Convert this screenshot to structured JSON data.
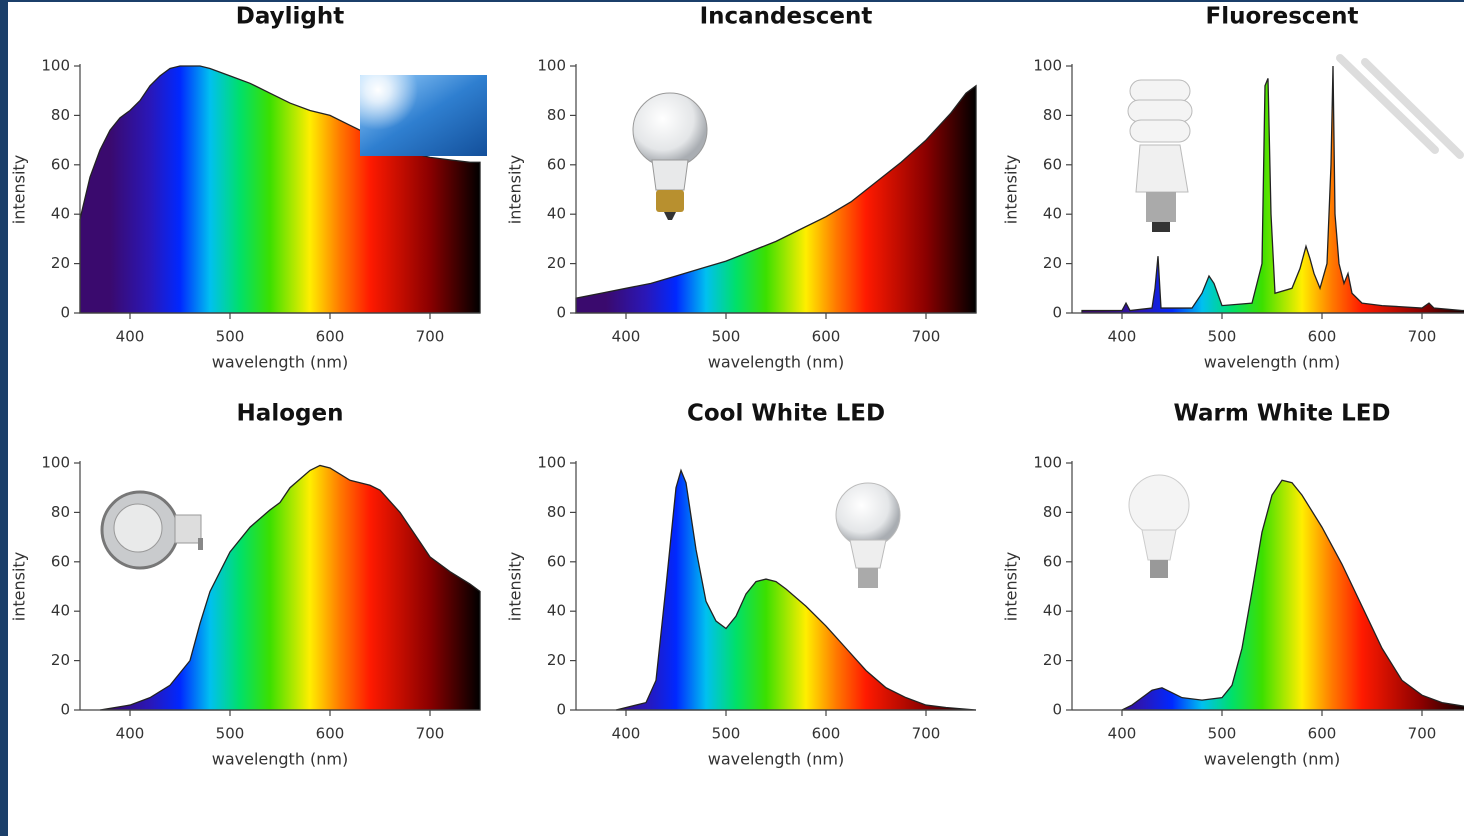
{
  "chart_data": [
    {
      "type": "area",
      "title": "Daylight",
      "xlabel": "wavelength (nm)",
      "ylabel": "intensity",
      "xlim": [
        350,
        750
      ],
      "ylim": [
        0,
        100
      ],
      "xticks": [
        400,
        500,
        600,
        700
      ],
      "yticks": [
        0,
        20,
        40,
        60,
        80,
        100
      ],
      "x": [
        350,
        360,
        370,
        380,
        390,
        400,
        410,
        420,
        430,
        440,
        450,
        460,
        470,
        480,
        500,
        520,
        540,
        560,
        580,
        600,
        620,
        640,
        660,
        680,
        700,
        720,
        740,
        750
      ],
      "values": [
        38,
        55,
        66,
        74,
        79,
        82,
        86,
        92,
        96,
        99,
        100,
        100,
        100,
        99,
        96,
        93,
        89,
        85,
        82,
        80,
        76,
        72,
        68,
        65,
        63,
        62,
        61,
        61
      ]
    },
    {
      "type": "area",
      "title": "Incandescent",
      "xlabel": "wavelength (nm)",
      "ylabel": "intensity",
      "xlim": [
        350,
        750
      ],
      "ylim": [
        0,
        100
      ],
      "xticks": [
        400,
        500,
        600,
        700
      ],
      "yticks": [
        0,
        20,
        40,
        60,
        80,
        100
      ],
      "x": [
        350,
        375,
        400,
        425,
        450,
        475,
        500,
        525,
        550,
        575,
        600,
        625,
        650,
        675,
        700,
        725,
        740,
        750
      ],
      "values": [
        6,
        8,
        10,
        12,
        15,
        18,
        21,
        25,
        29,
        34,
        39,
        45,
        53,
        61,
        70,
        81,
        89,
        92
      ]
    },
    {
      "type": "area",
      "title": "Fluorescent",
      "xlabel": "wavelength (nm)",
      "ylabel": "intensity",
      "xlim": [
        350,
        750
      ],
      "ylim": [
        0,
        100
      ],
      "xticks": [
        400,
        500,
        600,
        700
      ],
      "yticks": [
        0,
        20,
        40,
        60,
        80,
        100
      ],
      "x": [
        360,
        400,
        404,
        408,
        430,
        433,
        436,
        439,
        470,
        480,
        487,
        492,
        500,
        530,
        540,
        543,
        546,
        549,
        553,
        570,
        578,
        584,
        588,
        592,
        598,
        605,
        609,
        611,
        613,
        617,
        622,
        626,
        630,
        640,
        660,
        700,
        707,
        712,
        740,
        750
      ],
      "values": [
        1,
        1,
        4,
        1,
        2,
        10,
        23,
        2,
        2,
        8,
        15,
        12,
        3,
        4,
        20,
        92,
        95,
        40,
        8,
        10,
        18,
        27,
        22,
        16,
        10,
        20,
        60,
        100,
        40,
        20,
        12,
        16,
        8,
        4,
        3,
        2,
        4,
        2,
        1,
        1
      ]
    },
    {
      "type": "area",
      "title": "Halogen",
      "xlabel": "wavelength (nm)",
      "ylabel": "intensity",
      "xlim": [
        350,
        750
      ],
      "ylim": [
        0,
        100
      ],
      "xticks": [
        400,
        500,
        600,
        700
      ],
      "yticks": [
        0,
        20,
        40,
        60,
        80,
        100
      ],
      "x": [
        370,
        400,
        420,
        440,
        460,
        470,
        480,
        500,
        520,
        540,
        550,
        560,
        580,
        590,
        600,
        620,
        640,
        650,
        670,
        690,
        700,
        720,
        740,
        750
      ],
      "values": [
        0,
        2,
        5,
        10,
        20,
        35,
        48,
        64,
        74,
        81,
        84,
        90,
        97,
        99,
        98,
        93,
        91,
        89,
        80,
        68,
        62,
        56,
        51,
        48
      ]
    },
    {
      "type": "area",
      "title": "Cool White LED",
      "xlabel": "wavelength (nm)",
      "ylabel": "intensity",
      "xlim": [
        350,
        750
      ],
      "ylim": [
        0,
        100
      ],
      "xticks": [
        400,
        500,
        600,
        700
      ],
      "yticks": [
        0,
        20,
        40,
        60,
        80,
        100
      ],
      "x": [
        390,
        420,
        430,
        440,
        450,
        455,
        460,
        470,
        480,
        490,
        500,
        510,
        520,
        530,
        540,
        550,
        560,
        580,
        600,
        620,
        640,
        660,
        680,
        700,
        720,
        750
      ],
      "values": [
        0,
        3,
        12,
        50,
        90,
        97,
        92,
        65,
        44,
        36,
        33,
        38,
        47,
        52,
        53,
        52,
        49,
        42,
        34,
        25,
        16,
        9,
        5,
        2,
        1,
        0
      ]
    },
    {
      "type": "area",
      "title": "Warm White LED",
      "xlabel": "wavelength (nm)",
      "ylabel": "intensity",
      "xlim": [
        350,
        750
      ],
      "ylim": [
        0,
        100
      ],
      "xticks": [
        400,
        500,
        600,
        700
      ],
      "yticks": [
        0,
        20,
        40,
        60,
        80,
        100
      ],
      "x": [
        400,
        410,
        420,
        430,
        440,
        450,
        460,
        480,
        500,
        510,
        520,
        530,
        540,
        550,
        560,
        570,
        580,
        600,
        620,
        640,
        660,
        680,
        700,
        720,
        750
      ],
      "values": [
        0,
        2,
        5,
        8,
        9,
        7,
        5,
        4,
        5,
        10,
        25,
        48,
        72,
        87,
        93,
        92,
        87,
        74,
        59,
        42,
        25,
        12,
        6,
        3,
        1
      ]
    }
  ]
}
